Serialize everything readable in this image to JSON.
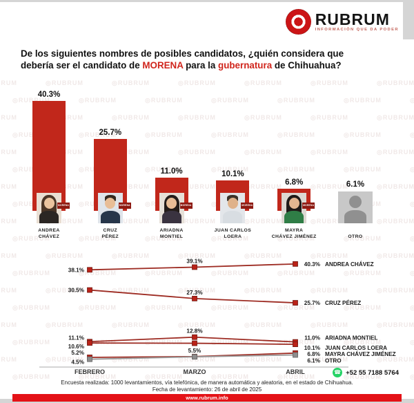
{
  "header": {
    "logo": {
      "brand": "RUBRUM",
      "tagline": "INFORMACIÓN QUE DA PODER"
    },
    "question_parts": [
      {
        "text": "De los siguientes nombres de posibles candidatos, ¿quién considera que"
      },
      {
        "br": true
      },
      {
        "text": "debería ser el candidato de "
      },
      {
        "text": "MORENA",
        "accent": true
      },
      {
        "text": " para la "
      },
      {
        "text": "gubernatura",
        "accent": true
      },
      {
        "text": " de Chihuahua?"
      }
    ]
  },
  "watermark": {
    "text": "◎RUBRUM"
  },
  "colors": {
    "bar_red": "#c1271b",
    "line_red": "#9d2b22",
    "marker_red": "#bb2218",
    "gray_series": "#999999",
    "footer_bar_red": "#e41217",
    "whatsapp_green": "#25d366",
    "accent_red": "#d0251c"
  },
  "bar_section": {
    "tag_label": "MORENA"
  },
  "chart_data": [
    {
      "type": "bar",
      "title": "De los siguientes nombres de posibles candidatos, ¿quién considera que debería ser el candidato de MORENA para la gubernatura de Chihuahua?",
      "categories": [
        "Andrea Chávez",
        "Cruz Pérez",
        "Ariadna Montiel",
        "Juan Carlos Loera",
        "Mayra Chávez Jiménez",
        "Otro"
      ],
      "values": [
        40.3,
        25.7,
        11.0,
        10.1,
        6.8,
        6.1
      ],
      "ylim": [
        0,
        45
      ],
      "items": [
        {
          "pct_label": "40.3%",
          "name_lines": [
            "ANDREA",
            "CHÁVEZ"
          ],
          "has_bar": true,
          "has_morena_tag": true,
          "avatar": {
            "bg": "#e9ded2",
            "hair_style": "long",
            "hair": "#4a3526",
            "skin": "#eac39e",
            "top": "#2b2623"
          }
        },
        {
          "pct_label": "25.7%",
          "name_lines": [
            "CRUZ",
            "PÉREZ"
          ],
          "has_bar": true,
          "has_morena_tag": true,
          "avatar": {
            "bg": "#dfe4ea",
            "hair_style": "short",
            "hair": "#33281f",
            "skin": "#e8bd96",
            "top": "#27364a"
          }
        },
        {
          "pct_label": "11.0%",
          "name_lines": [
            "ARIADNA",
            "MONTIEL"
          ],
          "has_bar": true,
          "has_morena_tag": true,
          "avatar": {
            "bg": "#e6e0d8",
            "hair_style": "long",
            "hair": "#241d1a",
            "skin": "#e8bd96",
            "top": "#3a3340"
          }
        },
        {
          "pct_label": "10.1%",
          "name_lines": [
            "JUAN CARLOS",
            "LOERA"
          ],
          "has_bar": true,
          "has_morena_tag": true,
          "avatar": {
            "bg": "#e3e6ea",
            "hair_style": "short",
            "hair": "#3c3229",
            "skin": "#dfb28a",
            "top": "#d8dde2"
          }
        },
        {
          "pct_label": "6.8%",
          "name_lines": [
            "MAYRA",
            "CHÁVEZ JIMÉNEZ"
          ],
          "has_bar": true,
          "has_morena_tag": true,
          "avatar": {
            "bg": "#ddd8d2",
            "hair_style": "long",
            "hair": "#1f1a18",
            "skin": "#e3b691",
            "top": "#2f7d46"
          }
        },
        {
          "pct_label": "6.1%",
          "name_lines": [
            "OTRO"
          ],
          "has_bar": false,
          "has_morena_tag": false,
          "silhouette": true,
          "avatar": {
            "bg": "#c8c8c8",
            "hair_style": "none",
            "hair": "#909090",
            "skin": "#909090",
            "top": "#909090"
          }
        }
      ]
    },
    {
      "type": "line",
      "categories": [
        "FEBRERO",
        "MARZO",
        "ABRIL"
      ],
      "ylim": [
        0,
        45
      ],
      "legend_position": "right-of-line",
      "grid": false,
      "series": [
        {
          "name": "ANDREA CHÁVEZ",
          "values": [
            38.1,
            39.1,
            40.3
          ],
          "labels": [
            "38.1%",
            "39.1%",
            "40.3%"
          ],
          "gray": false
        },
        {
          "name": "CRUZ PÉREZ",
          "values": [
            30.5,
            27.3,
            25.7
          ],
          "labels": [
            "30.5%",
            "27.3%",
            "25.7%"
          ],
          "gray": false
        },
        {
          "name": "ARIADNA MONTIEL",
          "values": [
            11.1,
            12.8,
            11.0
          ],
          "labels": [
            "11.1%",
            "12.8%",
            "11.0%"
          ],
          "gray": false
        },
        {
          "name": "JUAN CARLOS LOERA",
          "values": [
            10.6,
            10.5,
            10.1
          ],
          "labels": [
            "10.6%",
            "",
            "10.1%"
          ],
          "gray": false
        },
        {
          "name": "MAYRA CHÁVEZ JIMÉNEZ",
          "values": [
            5.2,
            5.5,
            6.8
          ],
          "labels": [
            "5.2%",
            "5.5%",
            "6.8%"
          ],
          "gray": false
        },
        {
          "name": "OTRO",
          "values": [
            4.5,
            5.4,
            6.1
          ],
          "labels": [
            "4.5%",
            "",
            "6.1%"
          ],
          "gray": true
        }
      ]
    }
  ],
  "footer": {
    "whatsapp": "+52 55 7188 5764",
    "line1": "Encuesta realizada: 1000 levantamientos, vía telefónica, de manera automática y aleatoria, en el estado de Chihuahua.",
    "line2": "Fecha de levantamiento: 26 de abril de 2025",
    "url": "www.rubrum.info"
  }
}
